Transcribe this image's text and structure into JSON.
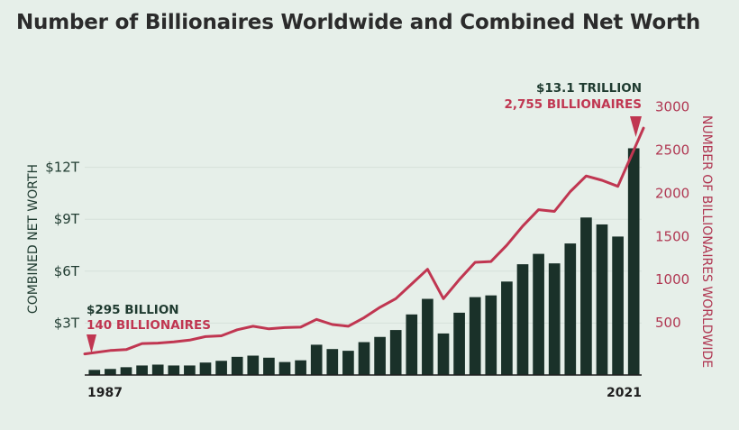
{
  "chart_data": {
    "type": "bar+line",
    "title": "Number of Billionaires Worldwide and Combined Net Worth",
    "x_start_label": "1987",
    "x_end_label": "2021",
    "years": [
      1987,
      1988,
      1989,
      1990,
      1991,
      1992,
      1993,
      1994,
      1995,
      1996,
      1997,
      1998,
      1999,
      2000,
      2001,
      2002,
      2003,
      2004,
      2005,
      2006,
      2007,
      2008,
      2009,
      2010,
      2011,
      2012,
      2013,
      2014,
      2015,
      2016,
      2017,
      2018,
      2019,
      2020,
      2021
    ],
    "left_axis": {
      "label": "COMBINED NET WORTH",
      "ticks": [
        {
          "value": 3,
          "label": "$3T"
        },
        {
          "value": 6,
          "label": "$6T"
        },
        {
          "value": 9,
          "label": "$9T"
        },
        {
          "value": 12,
          "label": "$12T"
        }
      ],
      "range": [
        0,
        14.4
      ],
      "unit": "trillion USD"
    },
    "right_axis": {
      "label": "NUMBER OF BILLIONAIRES WORLDWIDE",
      "ticks": [
        {
          "value": 500,
          "label": "500"
        },
        {
          "value": 1000,
          "label": "1000"
        },
        {
          "value": 1500,
          "label": "1500"
        },
        {
          "value": 2000,
          "label": "2000"
        },
        {
          "value": 2500,
          "label": "2500"
        },
        {
          "value": 3000,
          "label": "3000"
        }
      ],
      "range": [
        0,
        3000
      ]
    },
    "series": [
      {
        "name": "Combined net worth",
        "kind": "bar",
        "color": "#1a3129",
        "values": [
          0.295,
          0.35,
          0.45,
          0.55,
          0.6,
          0.55,
          0.55,
          0.72,
          0.82,
          1.05,
          1.12,
          1.0,
          0.75,
          0.85,
          1.75,
          1.5,
          1.4,
          1.9,
          2.2,
          2.6,
          3.5,
          4.4,
          2.4,
          3.6,
          4.5,
          4.6,
          5.4,
          6.4,
          7.0,
          6.45,
          7.6,
          9.1,
          8.7,
          8.0,
          13.1
        ]
      },
      {
        "name": "Number of billionaires",
        "kind": "line",
        "color": "#c03651",
        "values": [
          140,
          180,
          190,
          260,
          265,
          280,
          300,
          340,
          350,
          420,
          460,
          430,
          445,
          450,
          540,
          480,
          460,
          560,
          680,
          780,
          950,
          1120,
          780,
          1000,
          1200,
          1210,
          1400,
          1620,
          1810,
          1790,
          2020,
          2200,
          2150,
          2080,
          2755
        ]
      }
    ],
    "annotations": [
      {
        "year": 1987,
        "line1": "$295 BILLION",
        "line2": "140 BILLIONAIRES"
      },
      {
        "year": 2021,
        "line1": "$13.1 TRILLION",
        "line2": "2,755 BILLIONAIRES"
      }
    ],
    "grid": true
  }
}
